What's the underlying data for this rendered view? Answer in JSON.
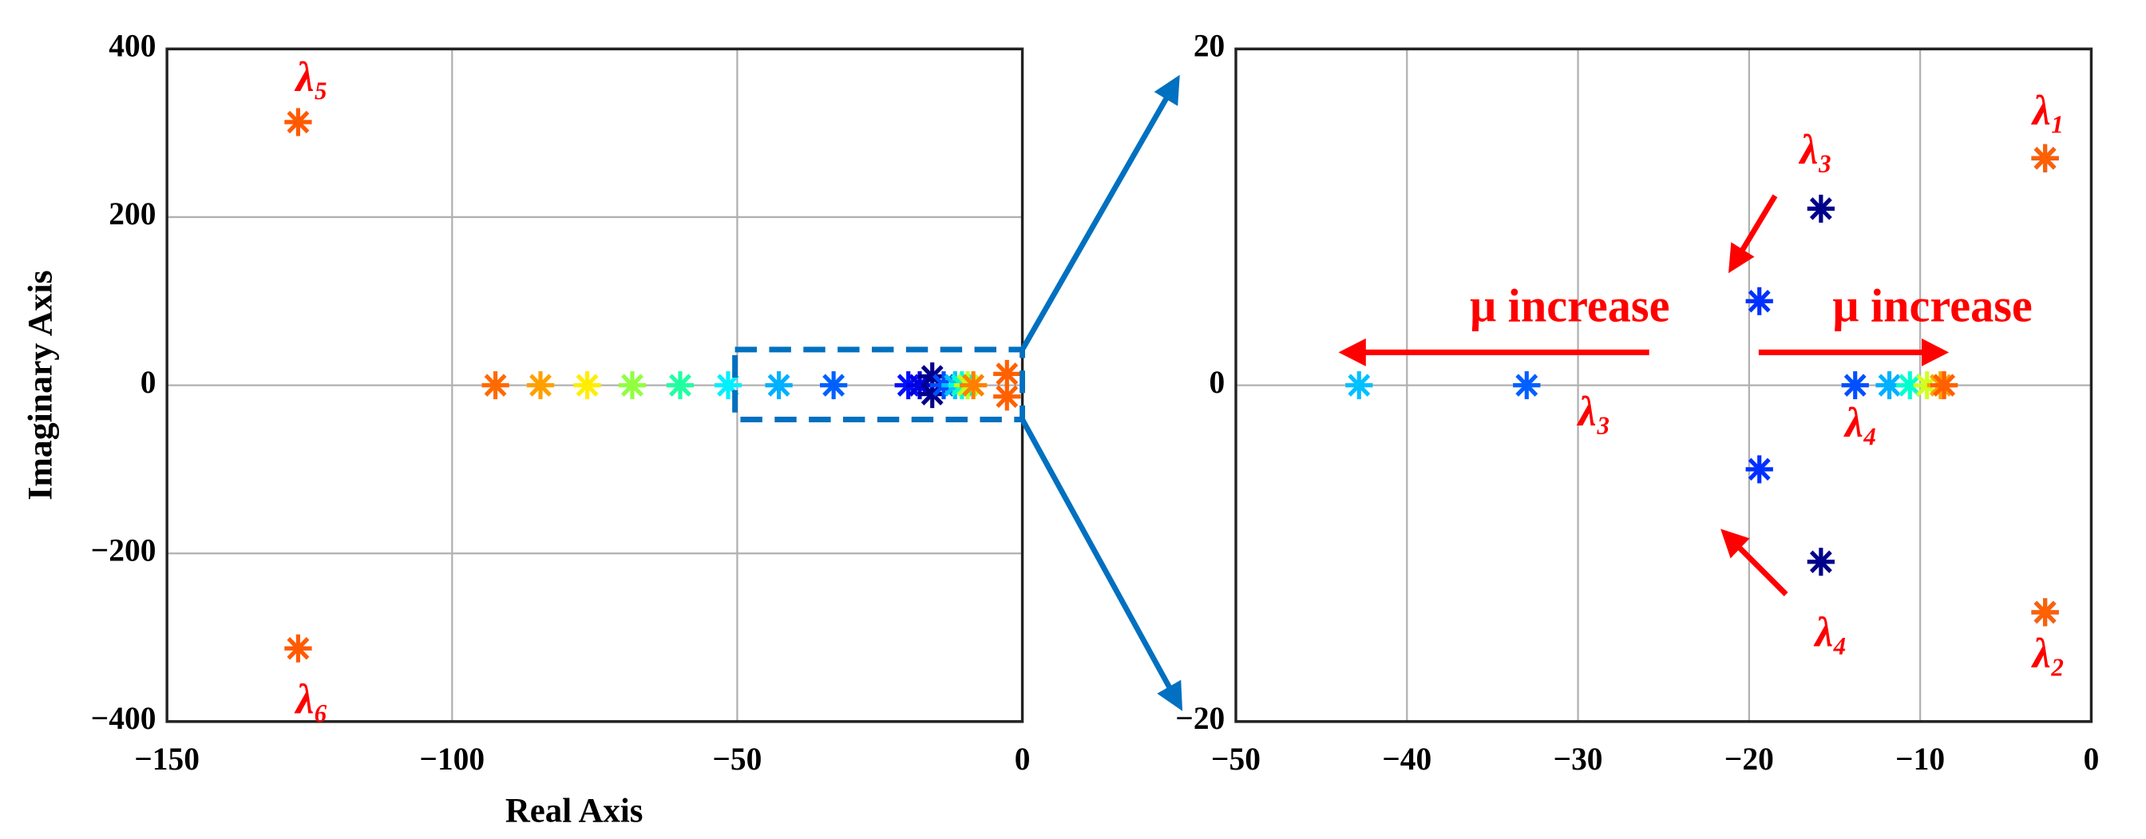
{
  "chart_data": [
    {
      "type": "scatter",
      "xlabel": "Real Axis",
      "ylabel": "Imaginary Axis",
      "xlim": [
        -150,
        0
      ],
      "ylim": [
        -400,
        400
      ],
      "xticks": [
        {
          "value": -150,
          "label": "−150"
        },
        {
          "value": -100,
          "label": "−100"
        },
        {
          "value": -50,
          "label": "−50"
        },
        0
      ],
      "yticks": [
        {
          "value": -400,
          "label": "−400"
        },
        {
          "value": -200,
          "label": "−200"
        },
        0,
        200,
        400
      ],
      "grid": true,
      "points": [
        {
          "x": -127,
          "y": 313,
          "color": "#ff5a00"
        },
        {
          "x": -127,
          "y": -313,
          "color": "#ff5a00"
        },
        {
          "x": -92.4,
          "y": 0,
          "color": "#ff6a00"
        },
        {
          "x": -84.5,
          "y": 0,
          "color": "#ffa000"
        },
        {
          "x": -76.3,
          "y": 0,
          "color": "#ffee00"
        },
        {
          "x": -68.4,
          "y": 0,
          "color": "#90ff40"
        },
        {
          "x": -60,
          "y": 0,
          "color": "#20ffa0"
        },
        {
          "x": -51.6,
          "y": 0,
          "color": "#00f0ff"
        },
        {
          "x": -42.7,
          "y": 0,
          "color": "#00b0ff"
        },
        {
          "x": -33.1,
          "y": 0,
          "color": "#0060ff"
        },
        {
          "x": -20,
          "y": 0,
          "color": "#0010ff"
        },
        {
          "x": -18,
          "y": 0,
          "color": "#0000e0"
        },
        {
          "x": -15.8,
          "y": 10.5,
          "color": "#00008b"
        },
        {
          "x": -15.8,
          "y": -10.5,
          "color": "#00008b"
        },
        {
          "x": -13.8,
          "y": 0,
          "color": "#0050ff"
        },
        {
          "x": -11.8,
          "y": 0,
          "color": "#00c0ff"
        },
        {
          "x": -10.6,
          "y": 0,
          "color": "#00ffd0"
        },
        {
          "x": -9.6,
          "y": 0,
          "color": "#c0ff20"
        },
        {
          "x": -8.6,
          "y": 0,
          "color": "#ff8000"
        },
        {
          "x": -2.7,
          "y": 13.5,
          "color": "#ff6000"
        },
        {
          "x": -2.7,
          "y": -13.5,
          "color": "#ff6000"
        }
      ],
      "annotations": [
        "λ₅",
        "λ₆"
      ]
    },
    {
      "type": "scatter",
      "xlim": [
        -50,
        0
      ],
      "ylim": [
        -20,
        20
      ],
      "xticks": [
        {
          "value": -50,
          "label": "−50"
        },
        {
          "value": -40,
          "label": "−40"
        },
        {
          "value": -30,
          "label": "−30"
        },
        {
          "value": -20,
          "label": "−20"
        },
        {
          "value": -10,
          "label": "−10"
        },
        0
      ],
      "yticks": [
        {
          "value": -20,
          "label": "−20"
        },
        0,
        20
      ],
      "grid": true,
      "points": [
        {
          "x": -42.8,
          "y": 0,
          "color": "#00c0ff"
        },
        {
          "x": -33,
          "y": 0,
          "color": "#0060ff"
        },
        {
          "x": -19.4,
          "y": 5,
          "color": "#0030ff"
        },
        {
          "x": -19.4,
          "y": -5,
          "color": "#0030ff"
        },
        {
          "x": -15.8,
          "y": 10.5,
          "color": "#00008b"
        },
        {
          "x": -15.8,
          "y": -10.5,
          "color": "#00008b"
        },
        {
          "x": -13.8,
          "y": 0,
          "color": "#0050ff"
        },
        {
          "x": -11.8,
          "y": 0,
          "color": "#00b0ff"
        },
        {
          "x": -10.6,
          "y": 0,
          "color": "#00ffd0"
        },
        {
          "x": -9.6,
          "y": 0,
          "color": "#d0ff20"
        },
        {
          "x": -8.8,
          "y": 0,
          "color": "#ffa000"
        },
        {
          "x": -8.6,
          "y": 0,
          "color": "#ff6000"
        },
        {
          "x": -2.7,
          "y": 13.5,
          "color": "#0020c0"
        },
        {
          "x": -2.7,
          "y": 13.5,
          "color": "#ff6000"
        },
        {
          "x": -2.7,
          "y": -13.5,
          "color": "#0020c0"
        },
        {
          "x": -2.7,
          "y": -13.5,
          "color": "#ff6000"
        }
      ],
      "annotations": [
        "λ₁",
        "λ₂",
        "λ₃",
        "λ₃",
        "λ₄",
        "λ₄",
        "μ increase",
        "μ increase"
      ]
    }
  ]
}
